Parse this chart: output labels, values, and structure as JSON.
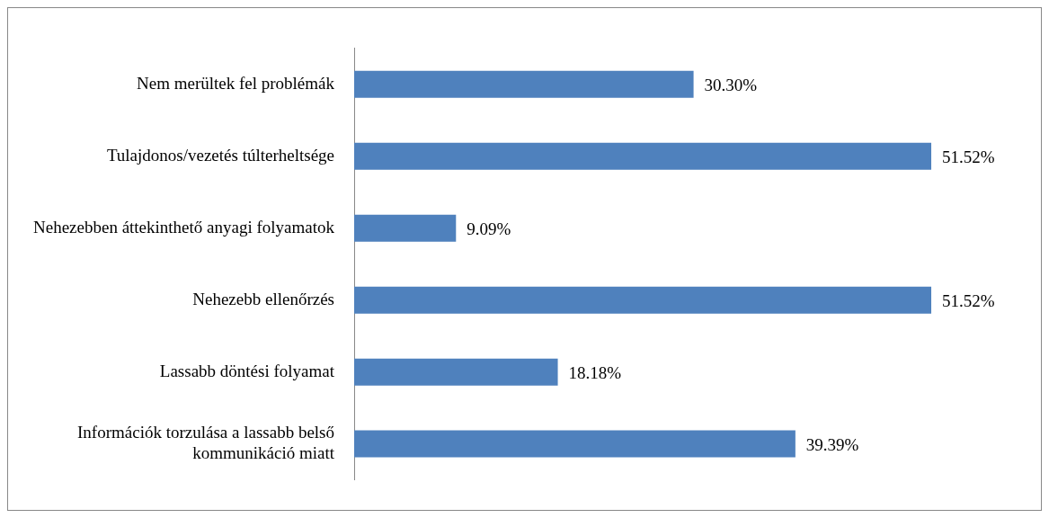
{
  "chart_data": {
    "type": "bar",
    "orientation": "horizontal",
    "categories": [
      "Nem merültek fel problémák",
      "Tulajdonos/vezetés túlterheltsége",
      "Nehezebben áttekinthető anyagi folyamatok",
      "Nehezebb ellenőrzés",
      "Lassabb döntési folyamat",
      "Információk torzulása a lassabb belső kommunikáció miatt"
    ],
    "values": [
      30.3,
      51.52,
      9.09,
      51.52,
      18.18,
      39.39
    ],
    "value_labels": [
      "30.30%",
      "51.52%",
      "9.09%",
      "51.52%",
      "18.18%",
      "39.39%"
    ],
    "color": "#4f81bd",
    "legend": false
  }
}
